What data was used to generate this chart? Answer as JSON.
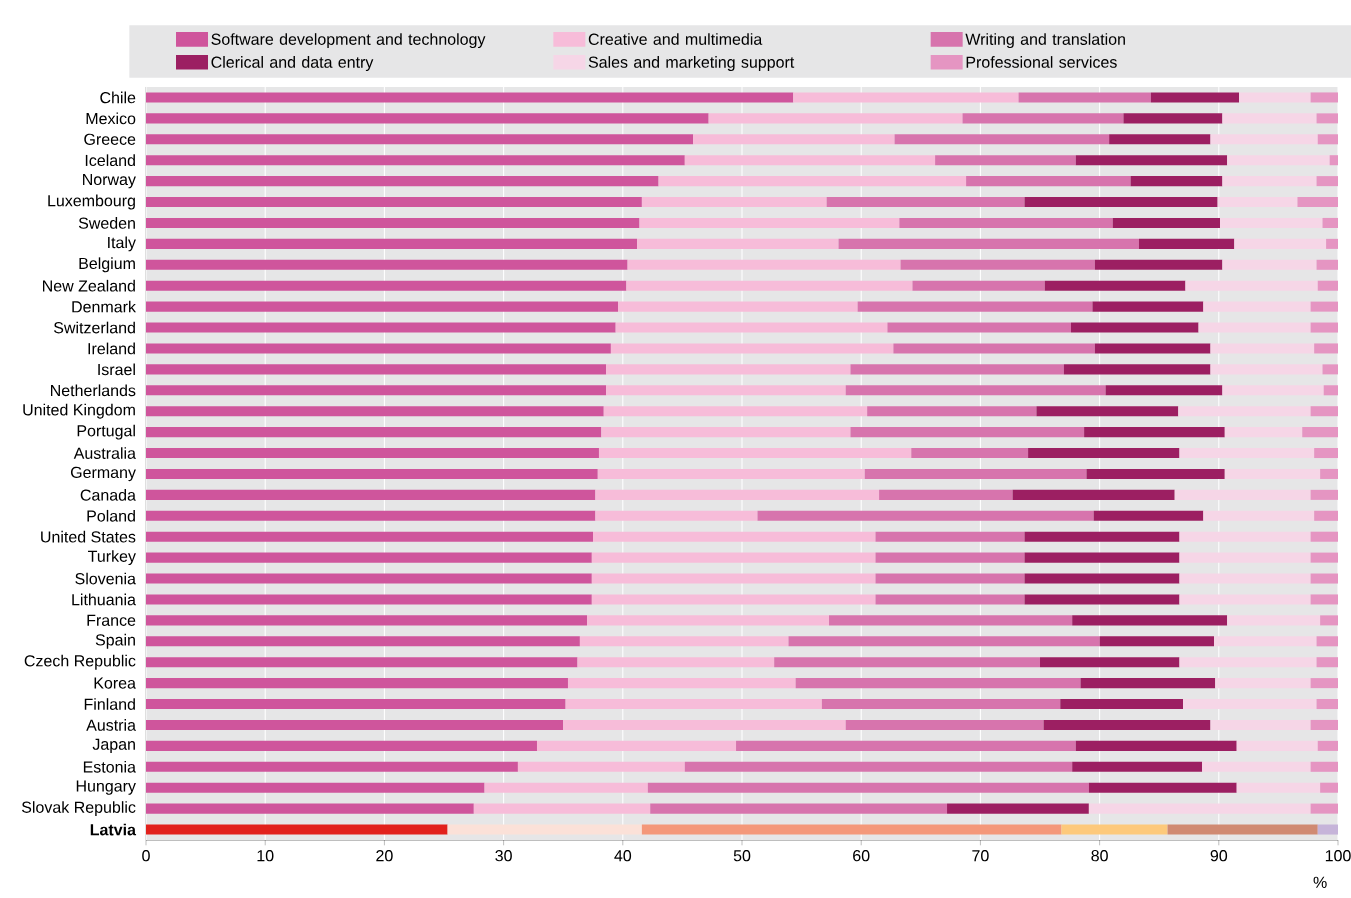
{
  "chart_data": {
    "type": "bar",
    "orientation": "horizontal",
    "stacked": true,
    "categories": [
      "Chile",
      "Mexico",
      "Greece",
      "Iceland",
      "Norway",
      "Luxembourg",
      "Sweden",
      "Italy",
      "Belgium",
      "New Zealand",
      "Denmark",
      "Switzerland",
      "Ireland",
      "Israel",
      "Netherlands",
      "United Kingdom",
      "Portugal",
      "Australia",
      "Germany",
      "Canada",
      "Poland",
      "United States",
      "Turkey",
      "Slovenia",
      "Lithuania",
      "France",
      "Spain",
      "Czech Republic",
      "Korea",
      "Finland",
      "Austria",
      "Japan",
      "Estonia",
      "Hungary",
      "Slovak Republic",
      "Latvia"
    ],
    "series": [
      {
        "name": "Software development and technology",
        "color": "#cf559c",
        "values": [
          54.3,
          47.2,
          45.9,
          45.2,
          43.0,
          41.6,
          41.4,
          41.2,
          40.4,
          40.3,
          39.6,
          39.4,
          39.0,
          38.6,
          38.6,
          38.4,
          38.2,
          38.0,
          37.9,
          37.7,
          37.7,
          37.5,
          37.4,
          37.4,
          37.4,
          37.0,
          36.4,
          36.2,
          35.4,
          35.2,
          35.0,
          32.8,
          31.2,
          28.4,
          27.5,
          25.3
        ],
        "colors": [
          "#cf559c",
          "#cf559c",
          "#cf559c",
          "#cf559c",
          "#cf559c",
          "#cf559c",
          "#cf559c",
          "#cf559c",
          "#cf559c",
          "#cf559c",
          "#cf559c",
          "#cf559c",
          "#cf559c",
          "#cf559c",
          "#cf559c",
          "#cf559c",
          "#cf559c",
          "#cf559c",
          "#cf559c",
          "#cf559c",
          "#cf559c",
          "#cf559c",
          "#cf559c",
          "#cf559c",
          "#cf559c",
          "#cf559c",
          "#cf559c",
          "#cf559c",
          "#cf559c",
          "#cf559c",
          "#cf559c",
          "#cf559c",
          "#cf559c",
          "#cf559c",
          "#cf559c",
          "#e2211c"
        ]
      },
      {
        "name": "Creative and multimedia",
        "color": "#f7bcd9",
        "values": [
          18.9,
          21.3,
          16.9,
          21.0,
          25.8,
          15.5,
          21.8,
          16.9,
          22.9,
          24.0,
          20.1,
          22.8,
          23.7,
          20.5,
          20.1,
          22.1,
          20.9,
          26.2,
          22.4,
          23.8,
          13.6,
          23.7,
          23.8,
          23.8,
          23.8,
          20.3,
          17.5,
          16.5,
          19.1,
          21.5,
          23.7,
          16.7,
          14.0,
          13.7,
          14.8,
          16.3
        ],
        "colors": [
          "#f7bcd9",
          "#f7bcd9",
          "#f7bcd9",
          "#f7bcd9",
          "#f7bcd9",
          "#f7bcd9",
          "#f7bcd9",
          "#f7bcd9",
          "#f7bcd9",
          "#f7bcd9",
          "#f7bcd9",
          "#f7bcd9",
          "#f7bcd9",
          "#f7bcd9",
          "#f7bcd9",
          "#f7bcd9",
          "#f7bcd9",
          "#f7bcd9",
          "#f7bcd9",
          "#f7bcd9",
          "#f7bcd9",
          "#f7bcd9",
          "#f7bcd9",
          "#f7bcd9",
          "#f7bcd9",
          "#f7bcd9",
          "#f7bcd9",
          "#f7bcd9",
          "#f7bcd9",
          "#f7bcd9",
          "#f7bcd9",
          "#f7bcd9",
          "#f7bcd9",
          "#f7bcd9",
          "#f7bcd9",
          "#fbe1d8"
        ]
      },
      {
        "name": "Writing and translation",
        "color": "#d774ad",
        "values": [
          11.1,
          13.5,
          18.0,
          11.8,
          13.8,
          16.6,
          17.9,
          25.2,
          16.3,
          11.1,
          19.7,
          15.4,
          16.9,
          17.9,
          21.8,
          14.2,
          19.6,
          9.8,
          18.6,
          11.2,
          28.2,
          12.5,
          12.5,
          12.5,
          12.5,
          20.4,
          26.1,
          22.3,
          23.9,
          20.0,
          16.6,
          28.5,
          32.5,
          37.0,
          24.9,
          35.2
        ],
        "colors": [
          "#d774ad",
          "#d774ad",
          "#d774ad",
          "#d774ad",
          "#d774ad",
          "#d774ad",
          "#d774ad",
          "#d774ad",
          "#d774ad",
          "#d774ad",
          "#d774ad",
          "#d774ad",
          "#d774ad",
          "#d774ad",
          "#d774ad",
          "#d774ad",
          "#d774ad",
          "#d774ad",
          "#d774ad",
          "#d774ad",
          "#d774ad",
          "#d774ad",
          "#d774ad",
          "#d774ad",
          "#d774ad",
          "#d774ad",
          "#d774ad",
          "#d774ad",
          "#d774ad",
          "#d774ad",
          "#d774ad",
          "#d774ad",
          "#d774ad",
          "#d774ad",
          "#d774ad",
          "#f4987a"
        ]
      },
      {
        "name": "Clerical and data entry",
        "color": "#9c1f62",
        "values": [
          7.4,
          8.3,
          8.5,
          12.7,
          7.7,
          16.2,
          9.0,
          8.0,
          10.7,
          11.8,
          9.3,
          10.7,
          9.7,
          12.3,
          9.8,
          11.9,
          11.8,
          12.7,
          11.6,
          13.6,
          9.2,
          13.0,
          13.0,
          13.0,
          13.0,
          13.0,
          9.6,
          11.7,
          11.3,
          10.3,
          14.0,
          13.5,
          10.9,
          12.4,
          11.9,
          8.9
        ],
        "colors": [
          "#9c1f62",
          "#9c1f62",
          "#9c1f62",
          "#9c1f62",
          "#9c1f62",
          "#9c1f62",
          "#9c1f62",
          "#9c1f62",
          "#9c1f62",
          "#9c1f62",
          "#9c1f62",
          "#9c1f62",
          "#9c1f62",
          "#9c1f62",
          "#9c1f62",
          "#9c1f62",
          "#9c1f62",
          "#9c1f62",
          "#9c1f62",
          "#9c1f62",
          "#9c1f62",
          "#9c1f62",
          "#9c1f62",
          "#9c1f62",
          "#9c1f62",
          "#9c1f62",
          "#9c1f62",
          "#9c1f62",
          "#9c1f62",
          "#9c1f62",
          "#9c1f62",
          "#9c1f62",
          "#9c1f62",
          "#9c1f62",
          "#9c1f62",
          "#fdc97b"
        ]
      },
      {
        "name": "Sales and marketing support",
        "color": "#f6d6e7",
        "values": [
          6.0,
          7.9,
          9.0,
          8.6,
          7.9,
          6.7,
          8.6,
          7.7,
          7.9,
          11.1,
          9.0,
          9.4,
          8.7,
          9.4,
          8.5,
          11.1,
          6.5,
          11.3,
          8.0,
          11.4,
          9.3,
          11.0,
          11.0,
          11.0,
          11.0,
          7.8,
          8.6,
          11.5,
          8.0,
          11.2,
          8.4,
          6.8,
          9.1,
          7.0,
          18.6,
          12.6
        ],
        "colors": [
          "#f6d6e7",
          "#f6d6e7",
          "#f6d6e7",
          "#f6d6e7",
          "#f6d6e7",
          "#f6d6e7",
          "#f6d6e7",
          "#f6d6e7",
          "#f6d6e7",
          "#f6d6e7",
          "#f6d6e7",
          "#f6d6e7",
          "#f6d6e7",
          "#f6d6e7",
          "#f6d6e7",
          "#f6d6e7",
          "#f6d6e7",
          "#f6d6e7",
          "#f6d6e7",
          "#f6d6e7",
          "#f6d6e7",
          "#f6d6e7",
          "#f6d6e7",
          "#f6d6e7",
          "#f6d6e7",
          "#f6d6e7",
          "#f6d6e7",
          "#f6d6e7",
          "#f6d6e7",
          "#f6d6e7",
          "#f6d6e7",
          "#f6d6e7",
          "#f6d6e7",
          "#f6d6e7",
          "#f6d6e7",
          "#d08a72"
        ]
      },
      {
        "name": "Professional services",
        "color": "#e595c2",
        "values": [
          2.3,
          1.8,
          1.7,
          0.7,
          1.8,
          3.4,
          1.3,
          1.0,
          1.8,
          1.7,
          2.3,
          2.3,
          2.0,
          1.3,
          1.2,
          2.3,
          3.0,
          2.0,
          1.5,
          2.3,
          2.0,
          2.3,
          2.3,
          2.3,
          2.3,
          1.5,
          1.8,
          1.8,
          2.3,
          1.8,
          2.3,
          1.7,
          2.3,
          1.5,
          2.3,
          1.7
        ],
        "colors": [
          "#e595c2",
          "#e595c2",
          "#e595c2",
          "#e595c2",
          "#e595c2",
          "#e595c2",
          "#e595c2",
          "#e595c2",
          "#e595c2",
          "#e595c2",
          "#e595c2",
          "#e595c2",
          "#e595c2",
          "#e595c2",
          "#e595c2",
          "#e595c2",
          "#e595c2",
          "#e595c2",
          "#e595c2",
          "#e595c2",
          "#e595c2",
          "#e595c2",
          "#e595c2",
          "#e595c2",
          "#e595c2",
          "#e595c2",
          "#e595c2",
          "#e595c2",
          "#e595c2",
          "#e595c2",
          "#e595c2",
          "#e595c2",
          "#e595c2",
          "#e595c2",
          "#e595c2",
          "#c6b4d9"
        ]
      }
    ],
    "xlim": [
      0,
      100
    ],
    "xticks": [
      0,
      10,
      20,
      30,
      40,
      50,
      60,
      70,
      80,
      90,
      100
    ],
    "xlabel": "%",
    "grid": "x",
    "legend": "top"
  }
}
